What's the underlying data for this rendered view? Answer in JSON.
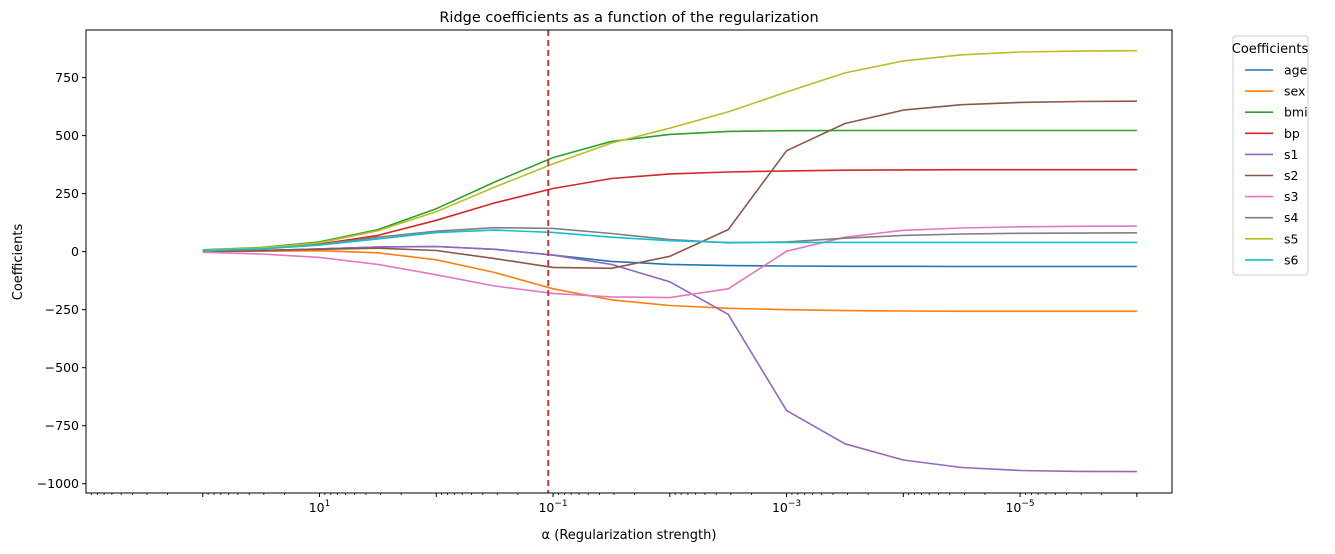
{
  "chart_data": {
    "type": "line",
    "title": "Ridge coefficients as a function of the regularization",
    "xlabel": "α (Regularization strength)",
    "ylabel": "Coefficients",
    "x_scale": "log",
    "x_axis_reversed": true,
    "xlim": [
      1000,
      5e-07
    ],
    "ylim": [
      -1040,
      955
    ],
    "x_ticks": [
      {
        "value": 10,
        "base": "10",
        "exp": "1"
      },
      {
        "value": 0.1,
        "base": "10",
        "exp": "−1"
      },
      {
        "value": 0.001,
        "base": "10",
        "exp": "−3"
      },
      {
        "value": 1e-05,
        "base": "10",
        "exp": "−5"
      }
    ],
    "y_ticks": [
      750,
      500,
      250,
      0,
      -250,
      -500,
      -750,
      -1000
    ],
    "y_tick_labels": [
      "750",
      "500",
      "250",
      "0",
      "−250",
      "−500",
      "−750",
      "−1000"
    ],
    "vline": {
      "x": 0.11,
      "color": "#d62728",
      "style": "dashed"
    },
    "legend": {
      "title": "Coefficients",
      "placement": "outside-top-right"
    },
    "x": [
      100,
      31.6,
      10,
      3.16,
      1,
      0.316,
      0.1,
      0.0316,
      0.01,
      0.00316,
      0.001,
      0.000316,
      0.0001,
      3.16e-05,
      1e-05,
      3.16e-06,
      1e-06
    ],
    "series": [
      {
        "name": "age",
        "color": "#1f77b4",
        "values": [
          1,
          5,
          12,
          20,
          22,
          10,
          -15,
          -42,
          -55,
          -60,
          -62,
          -63,
          -63,
          -64,
          -64,
          -64,
          -64
        ]
      },
      {
        "name": "sex",
        "color": "#ff7f0e",
        "values": [
          1,
          2,
          4,
          -5,
          -35,
          -90,
          -160,
          -208,
          -232,
          -244,
          -250,
          -254,
          -256,
          -257,
          -257,
          -257,
          -257
        ]
      },
      {
        "name": "bmi",
        "color": "#2ca02c",
        "values": [
          8,
          18,
          42,
          95,
          185,
          300,
          405,
          475,
          505,
          518,
          521,
          522,
          522,
          522,
          522,
          522,
          522
        ]
      },
      {
        "name": "bp",
        "color": "#d62728",
        "values": [
          5,
          14,
          32,
          70,
          135,
          210,
          272,
          315,
          335,
          343,
          348,
          351,
          352,
          353,
          353,
          353,
          353
        ]
      },
      {
        "name": "s1",
        "color": "#9467bd",
        "values": [
          1,
          5,
          12,
          20,
          22,
          10,
          -15,
          -55,
          -130,
          -270,
          -685,
          -828,
          -898,
          -930,
          -943,
          -947,
          -948
        ]
      },
      {
        "name": "s2",
        "color": "#8c564b",
        "values": [
          1,
          4,
          10,
          15,
          5,
          -30,
          -68,
          -72,
          -20,
          95,
          435,
          552,
          610,
          633,
          643,
          647,
          648
        ]
      },
      {
        "name": "s3",
        "color": "#e377c2",
        "values": [
          -3,
          -10,
          -25,
          -55,
          -100,
          -148,
          -180,
          -195,
          -198,
          -160,
          2,
          62,
          92,
          102,
          107,
          109,
          110
        ]
      },
      {
        "name": "s4",
        "color": "#7f7f7f",
        "values": [
          3,
          12,
          30,
          62,
          88,
          103,
          100,
          78,
          52,
          38,
          42,
          58,
          70,
          76,
          79,
          80,
          81
        ]
      },
      {
        "name": "s5",
        "color": "#bcbd22",
        "values": [
          6,
          16,
          38,
          90,
          172,
          278,
          378,
          468,
          532,
          602,
          688,
          770,
          822,
          848,
          860,
          864,
          866
        ]
      },
      {
        "name": "s6",
        "color": "#17becf",
        "values": [
          4,
          12,
          28,
          55,
          82,
          93,
          83,
          62,
          47,
          40,
          40,
          40,
          40,
          40,
          40,
          40,
          40
        ]
      }
    ]
  }
}
